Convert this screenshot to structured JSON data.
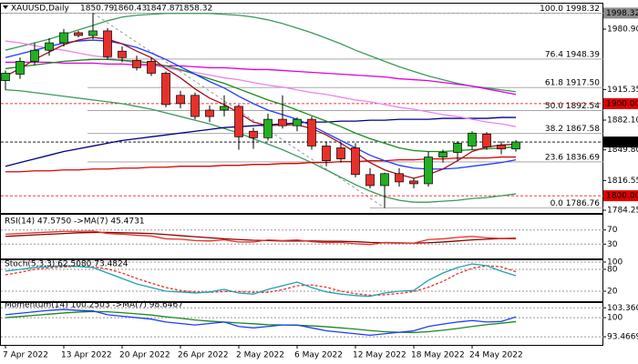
{
  "chart_data": [
    {
      "type": "candlestick",
      "title": "XAUUSD,Daily",
      "categories": [
        "7 Apr 2022",
        null,
        null,
        null,
        "13 Apr 2022",
        null,
        null,
        null,
        "20 Apr 2022",
        null,
        null,
        null,
        "26 Apr 2022",
        null,
        null,
        null,
        "2 May 2022",
        null,
        null,
        null,
        "6 May 2022",
        null,
        null,
        null,
        "12 May 2022",
        null,
        null,
        null,
        "18 May 2022",
        null,
        null,
        null,
        "24 May 2022",
        null,
        null,
        null
      ],
      "open": [
        1925,
        1932,
        1946,
        1958,
        1966,
        1977,
        1974,
        1979,
        1957,
        1947,
        1946,
        1933,
        1909,
        1909,
        1893,
        1893,
        1897,
        1870,
        1863,
        1883,
        1876,
        1883,
        1854,
        1852,
        1852,
        1823,
        1811,
        1824,
        1816,
        1813,
        1842,
        1847,
        1854,
        1867,
        1855,
        1850.79
      ],
      "high": [
        1936,
        1950,
        1966,
        1971,
        1981,
        1979,
        1998.32,
        1982,
        1962,
        1952,
        1950,
        1935,
        1914,
        1912,
        1898,
        1909,
        1899,
        1874,
        1889,
        1909,
        1885,
        1886,
        1859,
        1858,
        1857,
        1830,
        1825,
        1830,
        1819,
        1848,
        1850,
        1859,
        1870,
        1869,
        1859,
        1860.43
      ],
      "low": [
        1915,
        1927,
        1942,
        1952,
        1962,
        1972,
        1970,
        1948,
        1945,
        1936,
        1930,
        1896,
        1895,
        1883,
        1880,
        1886,
        1850,
        1851,
        1860,
        1873,
        1870,
        1850,
        1832,
        1836,
        1820,
        1808,
        1786.76,
        1810,
        1808,
        1810,
        1836,
        1838,
        1850,
        1850,
        1845,
        1847.87
      ],
      "close": [
        1933,
        1946,
        1958,
        1966,
        1977,
        1974,
        1979,
        1951,
        1950,
        1939,
        1933,
        1899,
        1900,
        1886,
        1886,
        1897,
        1864,
        1863,
        1883,
        1876,
        1883,
        1854,
        1838,
        1840,
        1823,
        1811,
        1824,
        1815,
        1813,
        1842,
        1847,
        1857,
        1868,
        1853,
        1850.79,
        1858.32
      ],
      "up_color": "#22b022",
      "down_color": "#e8302b",
      "series": [
        {
          "color": "#3c9a5a",
          "values": [
            1958,
            1962,
            1966,
            1970,
            1975,
            1980,
            1985,
            1990,
            1994,
            1996,
            1997,
            1998,
            1998,
            1998,
            1998,
            1997,
            1996,
            1994,
            1991,
            1987,
            1982,
            1977,
            1971,
            1965,
            1958,
            1952,
            1946,
            1940,
            1935,
            1930,
            1926,
            1922,
            1919,
            1917,
            1915,
            1913
          ]
        },
        {
          "color": "#3c9a5a",
          "values": [
            1915,
            1914,
            1912,
            1910,
            1908,
            1906,
            1904,
            1902,
            1900,
            1897,
            1894,
            1890,
            1886,
            1882,
            1878,
            1873,
            1868,
            1862,
            1856,
            1850,
            1843,
            1836,
            1828,
            1820,
            1812,
            1805,
            1799,
            1795,
            1793,
            1793,
            1794,
            1795,
            1797,
            1798,
            1800,
            1802
          ]
        },
        {
          "color": "#dd0000",
          "values": [
            1826,
            1826,
            1827,
            1827,
            1828,
            1828,
            1829,
            1829,
            1830,
            1830,
            1831,
            1831,
            1832,
            1832,
            1832,
            1833,
            1833,
            1834,
            1834,
            1835,
            1835,
            1836,
            1836,
            1837,
            1837,
            1838,
            1838,
            1839,
            1839,
            1840,
            1840,
            1841,
            1841,
            1841,
            1842,
            1842
          ]
        },
        {
          "color": "#000080",
          "values": [
            1832,
            1836,
            1840,
            1844,
            1848,
            1851,
            1854,
            1857,
            1860,
            1862,
            1864,
            1866,
            1868,
            1870,
            1872,
            1874,
            1875,
            1876,
            1877,
            1878,
            1879,
            1880,
            1880,
            1881,
            1881,
            1882,
            1882,
            1883,
            1883,
            1883,
            1884,
            1884,
            1884,
            1884,
            1885,
            1885
          ]
        },
        {
          "color": "#ee82ee",
          "values": [
            1968,
            1966,
            1963,
            1960,
            1958,
            1955,
            1952,
            1950,
            1947,
            1944,
            1942,
            1939,
            1936,
            1934,
            1931,
            1928,
            1926,
            1923,
            1920,
            1918,
            1915,
            1912,
            1910,
            1907,
            1904,
            1902,
            1899,
            1896,
            1894,
            1891,
            1888,
            1886,
            1883,
            1880,
            1878,
            1875
          ]
        },
        {
          "color": "#e000e0",
          "values": [
            1945,
            1945,
            1945,
            1945,
            1944,
            1944,
            1944,
            1943,
            1943,
            1942,
            1942,
            1941,
            1941,
            1940,
            1939,
            1939,
            1938,
            1937,
            1937,
            1936,
            1935,
            1934,
            1933,
            1932,
            1931,
            1930,
            1929,
            1927,
            1926,
            1925,
            1923,
            1921,
            1919,
            1916,
            1913,
            1910
          ]
        },
        {
          "color": "#1a8a1a",
          "values": [
            1938,
            1940,
            1942,
            1944,
            1946,
            1947,
            1948,
            1948,
            1947,
            1946,
            1944,
            1941,
            1937,
            1932,
            1927,
            1922,
            1916,
            1910,
            1904,
            1899,
            1893,
            1887,
            1881,
            1875,
            1868,
            1862,
            1857,
            1852,
            1849,
            1848,
            1848,
            1849,
            1850,
            1851,
            1852,
            1853
          ]
        },
        {
          "color": "#1e3cff",
          "values": [
            1950,
            1954,
            1958,
            1962,
            1966,
            1968,
            1969,
            1968,
            1965,
            1961,
            1955,
            1948,
            1940,
            1932,
            1924,
            1917,
            1908,
            1900,
            1893,
            1888,
            1883,
            1876,
            1868,
            1860,
            1852,
            1844,
            1838,
            1833,
            1830,
            1829,
            1829,
            1830,
            1832,
            1834,
            1836,
            1839
          ]
        },
        {
          "color": "#a0101a",
          "values": [
            1930,
            1938,
            1948,
            1956,
            1964,
            1969,
            1972,
            1970,
            1965,
            1957,
            1950,
            1938,
            1928,
            1916,
            1906,
            1899,
            1890,
            1880,
            1876,
            1877,
            1877,
            1873,
            1866,
            1857,
            1847,
            1836,
            1828,
            1823,
            1819,
            1823,
            1829,
            1838,
            1848,
            1853,
            1855,
            1856
          ]
        }
      ],
      "ylim": [
        1782.3,
        2007.6
      ],
      "yticks": [
        {
          "value": 1980.9,
          "label": "1980.90"
        },
        {
          "value": 1915.35,
          "label": "1915.35"
        },
        {
          "value": 1882.1,
          "label": "1882.10"
        },
        {
          "value": 1849.8,
          "label": "1849.80"
        },
        {
          "value": 1816.55,
          "label": "1816.55"
        },
        1784.25
      ],
      "fib_levels": [
        {
          "value": 1998.32,
          "label": "100.0 1998.32"
        },
        {
          "value": 1948.39,
          "label": "76.4 1948.39"
        },
        {
          "value": 1917.5,
          "label": "61.8 1917.50"
        },
        {
          "value": 1892.54,
          "label": "50.0 1892.54"
        },
        {
          "value": 1867.58,
          "label": "38.2 1867.58"
        },
        {
          "value": 1836.69,
          "label": "23.6 1836.69"
        },
        {
          "value": 1786.76,
          "label": "0.0 1786.76"
        }
      ],
      "price_marks": [
        {
          "value": 1998.32,
          "label": "1998.32",
          "color": "#8c8c8c"
        },
        {
          "value": 1900,
          "label": "1900.00",
          "color": "#e00000"
        },
        {
          "value": 1858.32,
          "label": "1858.32",
          "color": "#000000"
        },
        {
          "value": 1800,
          "label": "1800.00",
          "color": "#e00000"
        }
      ]
    },
    {
      "type": "line",
      "title": "RSI(14) 47.5750 ->MA(7) 45.4731",
      "series": [
        {
          "color": "#8b0000",
          "values": [
            52,
            54,
            56,
            58,
            60,
            62,
            63,
            63,
            62,
            61,
            60,
            57,
            54,
            51,
            48,
            45,
            43,
            41,
            40,
            39,
            39,
            39,
            38,
            38,
            37,
            35,
            34,
            33,
            33,
            34,
            36,
            39,
            42,
            44,
            46,
            45.4731
          ]
        },
        {
          "color": "#e8302b",
          "values": [
            58,
            60,
            62,
            64,
            66,
            66,
            67,
            60,
            58,
            55,
            53,
            45,
            44,
            40,
            39,
            42,
            36,
            36,
            42,
            40,
            42,
            37,
            34,
            35,
            31,
            29,
            35,
            34,
            33,
            43,
            45,
            49,
            52,
            48,
            46,
            47.575
          ]
        }
      ],
      "ylim": [
        0,
        100
      ],
      "yticks": [
        70,
        30
      ]
    },
    {
      "type": "line",
      "title": "Stoch(5,3,3) 62.5080 73.4824",
      "series": [
        {
          "color": "#e8302b",
          "dashed": true,
          "values": [
            65,
            72,
            80,
            84,
            87,
            88,
            87,
            81,
            70,
            55,
            42,
            30,
            22,
            18,
            17,
            19,
            19,
            17,
            17,
            24,
            35,
            37,
            31,
            20,
            13,
            9,
            10,
            14,
            19,
            31,
            47,
            68,
            83,
            90,
            87,
            73.4824
          ]
        },
        {
          "color": "#20a0b0",
          "values": [
            75,
            80,
            85,
            88,
            90,
            88,
            85,
            70,
            55,
            40,
            30,
            20,
            18,
            15,
            18,
            25,
            15,
            12,
            25,
            35,
            45,
            30,
            18,
            12,
            8,
            6,
            15,
            20,
            22,
            50,
            70,
            85,
            95,
            90,
            75,
            62.508
          ]
        }
      ],
      "ylim": [
        0,
        100
      ],
      "yticks": [
        100,
        80,
        20
      ]
    },
    {
      "type": "line",
      "title": "Momentum(14) 100.2503 ->MA(7) 98.6467",
      "series": [
        {
          "color": "#1a8a1a",
          "values": [
            100,
            100.4,
            100.8,
            101.2,
            101.6,
            101.9,
            102.1,
            102,
            101.7,
            101.3,
            100.9,
            100.3,
            99.8,
            99.2,
            98.8,
            98.5,
            98.2,
            97.9,
            97.6,
            97.5,
            97.4,
            97.2,
            96.9,
            96.5,
            96.1,
            95.6,
            95.2,
            95,
            94.9,
            95.2,
            95.7,
            96.3,
            97,
            97.6,
            98.1,
            98.6467
          ]
        },
        {
          "color": "#1e3cff",
          "values": [
            101,
            101.5,
            102,
            102.5,
            102.8,
            102.5,
            102.3,
            101,
            100.5,
            100,
            99.5,
            98.5,
            98,
            97.5,
            98,
            98.5,
            97,
            96.5,
            97,
            97.5,
            97.5,
            96.5,
            95.5,
            95,
            94.5,
            94,
            94.5,
            95,
            95.5,
            97,
            97.8,
            98.5,
            99,
            98.5,
            98.7,
            100.2503
          ]
        }
      ],
      "ylim": [
        91,
        105
      ],
      "yticks": [
        103.3602,
        100,
        93.4669
      ]
    }
  ]
}
